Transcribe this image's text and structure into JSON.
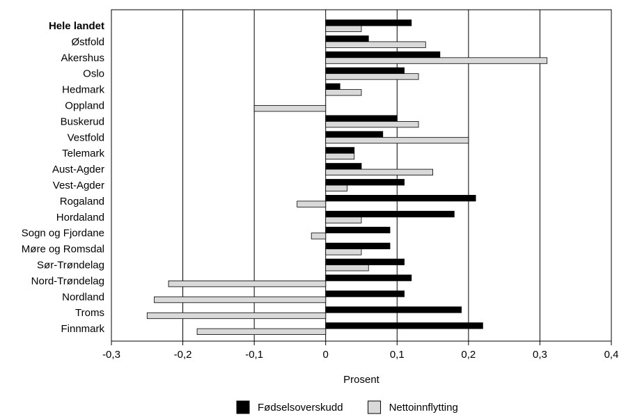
{
  "chart_data": {
    "type": "bar",
    "orientation": "horizontal",
    "x_label": "Prosent",
    "categories": [
      "Hele landet",
      "Østfold",
      "Akershus",
      "Oslo",
      "Hedmark",
      "Oppland",
      "Buskerud",
      "Vestfold",
      "Telemark",
      "Aust-Agder",
      "Vest-Agder",
      "Rogaland",
      "Hordaland",
      "Sogn og Fjordane",
      "Møre og Romsdal",
      "Sør-Trøndelag",
      "Nord-Trøndelag",
      "Nordland",
      "Troms",
      "Finnmark"
    ],
    "series": [
      {
        "name": "Fødselsoverskudd",
        "color": "#000000",
        "values": [
          0.12,
          0.06,
          0.16,
          0.11,
          0.02,
          0,
          0.1,
          0.08,
          0.04,
          0.05,
          0.11,
          0.21,
          0.18,
          0.09,
          0.09,
          0.11,
          0.12,
          0.11,
          0.19,
          0.22
        ]
      },
      {
        "name": "Nettoinnflytting",
        "color": "#d9d9d9",
        "values": [
          0.05,
          0.14,
          0.31,
          0.13,
          0.05,
          -0.1,
          0.13,
          0.2,
          0.04,
          0.15,
          0.03,
          -0.04,
          0.05,
          -0.02,
          0.05,
          0.06,
          -0.22,
          -0.24,
          -0.25,
          -0.18
        ]
      }
    ],
    "xlim": [
      -0.3,
      0.4
    ],
    "xticks": [
      {
        "value": -0.3,
        "label": "-0,3"
      },
      {
        "value": -0.2,
        "label": "-0,2"
      },
      {
        "value": -0.1,
        "label": "-0,1"
      },
      0,
      {
        "value": 0.1,
        "label": "0,1"
      },
      {
        "value": 0.2,
        "label": "0,2"
      },
      {
        "value": 0.3,
        "label": "0,3"
      },
      {
        "value": 0.4,
        "label": "0,4"
      }
    ],
    "grid": true
  }
}
